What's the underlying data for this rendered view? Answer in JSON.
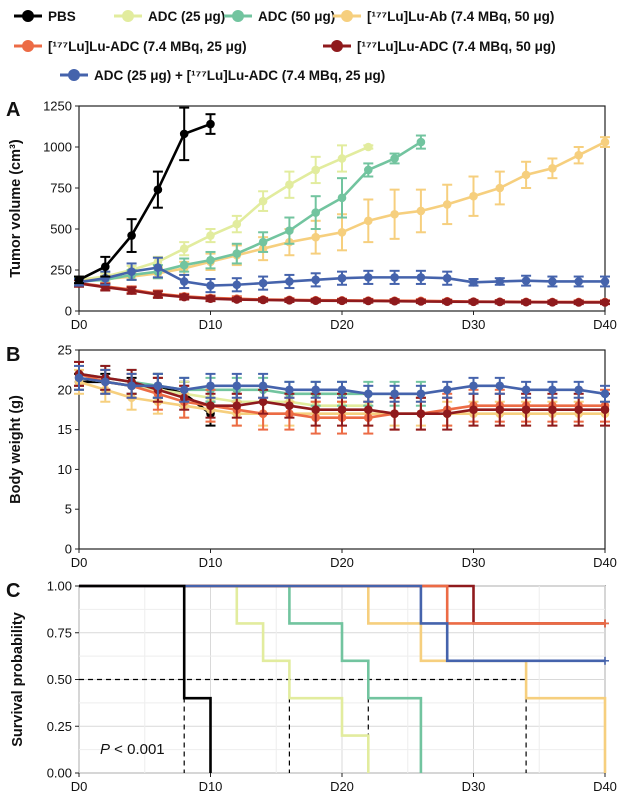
{
  "legend": {
    "items": [
      {
        "label": "PBS",
        "color": "#000000"
      },
      {
        "label": "ADC (25 μg)",
        "color": "#e2ec9e"
      },
      {
        "label": "ADC (50 μg)",
        "color": "#72c49f"
      },
      {
        "label": "[¹⁷⁷Lu]Lu-Ab (7.4 MBq, 50 μg)",
        "color": "#f6cf7e"
      },
      {
        "label": "[¹⁷⁷Lu]Lu-ADC (7.4 MBq, 25 μg)",
        "color": "#ec6b45"
      },
      {
        "label": "[¹⁷⁷Lu]Lu-ADC (7.4 MBq, 50 μg)",
        "color": "#8f1a1d"
      },
      {
        "label": "ADC (25 μg) + [¹⁷⁷Lu]Lu-ADC (7.4 MBq, 25 μg)",
        "color": "#4563ac"
      }
    ]
  },
  "chart_data": [
    {
      "panel": "A",
      "type": "line",
      "xlabel": "",
      "ylabel": "Tumor volume (cm³)",
      "xlim": [
        0,
        40
      ],
      "ylim": [
        0,
        1250
      ],
      "xticks": [
        0,
        10,
        20,
        30,
        40
      ],
      "xticklabels": [
        "D0",
        "D10",
        "D20",
        "D30",
        "D40"
      ],
      "yticks": [
        0,
        250,
        500,
        750,
        1000,
        1250
      ],
      "yticklabels": [
        "0",
        "250",
        "500",
        "750",
        "1000",
        "1250"
      ],
      "series": [
        {
          "name": "ADC (25 μg)",
          "color": "#e2ec9e",
          "x": [
            0,
            2,
            4,
            6,
            8,
            10,
            12,
            14,
            16,
            18,
            20,
            22
          ],
          "y": [
            190,
            210,
            250,
            300,
            380,
            460,
            530,
            670,
            770,
            860,
            930,
            1000
          ],
          "err": [
            20,
            20,
            25,
            30,
            40,
            40,
            50,
            60,
            80,
            80,
            80,
            10
          ]
        },
        {
          "name": "[¹⁷⁷Lu]Lu-Ab (7.4 MBq, 50 μg)",
          "color": "#f6cf7e",
          "x": [
            0,
            2,
            4,
            6,
            8,
            10,
            12,
            14,
            16,
            18,
            20,
            22,
            24,
            26,
            28,
            30,
            32,
            34,
            36,
            38,
            40
          ],
          "y": [
            185,
            195,
            210,
            230,
            260,
            300,
            340,
            380,
            420,
            450,
            480,
            550,
            590,
            610,
            650,
            700,
            750,
            830,
            870,
            950,
            1030
          ],
          "err": [
            20,
            20,
            20,
            30,
            40,
            50,
            60,
            70,
            80,
            100,
            110,
            130,
            150,
            130,
            120,
            120,
            100,
            80,
            60,
            50,
            30
          ]
        },
        {
          "name": "ADC (50 μg)",
          "color": "#72c49f",
          "x": [
            0,
            2,
            4,
            6,
            8,
            10,
            12,
            14,
            16,
            18,
            20,
            22,
            24,
            26
          ],
          "y": [
            180,
            190,
            220,
            240,
            280,
            310,
            350,
            420,
            490,
            600,
            690,
            860,
            930,
            1030
          ],
          "err": [
            20,
            20,
            30,
            40,
            40,
            50,
            60,
            60,
            80,
            100,
            120,
            40,
            30,
            40
          ]
        },
        {
          "name": "[¹⁷⁷Lu]Lu-ADC (7.4 MBq, 25 μg)",
          "color": "#ec6b45",
          "x": [
            0,
            2,
            4,
            6,
            8,
            10,
            12,
            14,
            16,
            18,
            20,
            22,
            24,
            26,
            28,
            30,
            32,
            34,
            36,
            38,
            40
          ],
          "y": [
            170,
            150,
            130,
            105,
            90,
            80,
            75,
            70,
            68,
            66,
            65,
            64,
            63,
            62,
            60,
            58,
            57,
            56,
            55,
            55,
            55
          ],
          "err": [
            20,
            20,
            20,
            20,
            15,
            15,
            15,
            10,
            10,
            10,
            10,
            10,
            10,
            10,
            10,
            10,
            10,
            10,
            10,
            10,
            10
          ]
        },
        {
          "name": "[¹⁷⁷Lu]Lu-ADC (7.4 MBq, 50 μg)",
          "color": "#8f1a1d",
          "x": [
            0,
            2,
            4,
            6,
            8,
            10,
            12,
            14,
            16,
            18,
            20,
            22,
            24,
            26,
            28,
            30,
            32,
            34,
            36,
            38,
            40
          ],
          "y": [
            168,
            145,
            125,
            100,
            85,
            75,
            70,
            67,
            65,
            63,
            62,
            61,
            60,
            58,
            57,
            56,
            55,
            54,
            53,
            52,
            52
          ],
          "err": [
            20,
            20,
            20,
            20,
            15,
            15,
            10,
            10,
            10,
            10,
            10,
            10,
            10,
            10,
            10,
            10,
            10,
            10,
            10,
            10,
            10
          ]
        },
        {
          "name": "ADC (25 μg) + [¹⁷⁷Lu]Lu-ADC (7.4 MBq, 25 μg)",
          "color": "#4563ac",
          "x": [
            0,
            2,
            4,
            6,
            8,
            10,
            12,
            14,
            16,
            18,
            20,
            22,
            24,
            26,
            28,
            30,
            32,
            34,
            36,
            38,
            40
          ],
          "y": [
            175,
            200,
            240,
            265,
            180,
            155,
            160,
            170,
            180,
            190,
            200,
            205,
            205,
            205,
            200,
            175,
            180,
            185,
            180,
            180,
            180
          ],
          "err": [
            20,
            40,
            50,
            60,
            40,
            40,
            40,
            40,
            40,
            40,
            40,
            40,
            40,
            40,
            40,
            20,
            20,
            30,
            30,
            30,
            30
          ]
        },
        {
          "name": "PBS",
          "color": "#000000",
          "x": [
            0,
            2,
            4,
            6,
            8,
            10
          ],
          "y": [
            190,
            270,
            460,
            740,
            1080,
            1140
          ],
          "err": [
            20,
            60,
            100,
            110,
            160,
            60
          ]
        }
      ]
    },
    {
      "panel": "B",
      "type": "line",
      "xlabel": "",
      "ylabel": "Body weight (g)",
      "xlim": [
        0,
        40
      ],
      "ylim": [
        0,
        25
      ],
      "xticks": [
        0,
        10,
        20,
        30,
        40
      ],
      "xticklabels": [
        "D0",
        "D10",
        "D20",
        "D30",
        "D40"
      ],
      "yticks": [
        0,
        5,
        10,
        15,
        20,
        25
      ],
      "yticklabels": [
        "0",
        "5",
        "10",
        "15",
        "20",
        "25"
      ],
      "series": [
        {
          "name": "PBS",
          "color": "#000000",
          "x": [
            0,
            2,
            4,
            6,
            8,
            10
          ],
          "y": [
            21,
            21,
            20.5,
            20.5,
            19.5,
            17
          ],
          "err": [
            1,
            1,
            1,
            1.5,
            1.5,
            1.5
          ]
        },
        {
          "name": "ADC (25 μg)",
          "color": "#e2ec9e",
          "x": [
            0,
            2,
            4,
            6,
            8,
            10,
            12,
            14,
            16,
            18,
            20,
            22
          ],
          "y": [
            21.5,
            21,
            20.5,
            20,
            19.5,
            19,
            18.5,
            18.5,
            18.5,
            18,
            18,
            18
          ],
          "err": [
            1.5,
            1.5,
            1.5,
            1.5,
            1.5,
            1.5,
            1.5,
            1.5,
            1.5,
            1.5,
            1.5,
            1.5
          ]
        },
        {
          "name": "ADC (50 μg)",
          "color": "#72c49f",
          "x": [
            0,
            2,
            4,
            6,
            8,
            10,
            12,
            14,
            16,
            18,
            20,
            22,
            24,
            26
          ],
          "y": [
            22,
            21.5,
            21,
            20.5,
            20,
            20,
            20,
            20,
            19.5,
            19.5,
            19.5,
            19.5,
            19.5,
            19.5
          ],
          "err": [
            1.5,
            1.5,
            1.5,
            1.5,
            1.5,
            1.5,
            1.5,
            1.5,
            1.5,
            1.5,
            1.5,
            1.5,
            1.5,
            1.5
          ]
        },
        {
          "name": "[¹⁷⁷Lu]Lu-Ab (7.4 MBq, 50 μg)",
          "color": "#f6cf7e",
          "x": [
            0,
            2,
            4,
            6,
            8,
            10,
            12,
            14,
            16,
            18,
            20,
            22,
            24,
            26,
            28,
            30,
            32,
            34,
            36,
            38,
            40
          ],
          "y": [
            21,
            20,
            19,
            18.5,
            18,
            17.5,
            17,
            17,
            17,
            17,
            17,
            17,
            17,
            17,
            17,
            17,
            17,
            17,
            17,
            17,
            17
          ],
          "err": [
            1.5,
            1.5,
            1.5,
            1.5,
            1.5,
            1.5,
            1.5,
            1.5,
            1.5,
            1.5,
            1.5,
            1.5,
            1.5,
            1.5,
            1.5,
            1.5,
            1.5,
            1.5,
            1.5,
            1.5,
            1.5
          ]
        },
        {
          "name": "[¹⁷⁷Lu]Lu-ADC (7.4 MBq, 25 μg)",
          "color": "#ec6b45",
          "x": [
            0,
            2,
            4,
            6,
            8,
            10,
            12,
            14,
            16,
            18,
            20,
            22,
            24,
            26,
            28,
            30,
            32,
            34,
            36,
            38,
            40
          ],
          "y": [
            22,
            21,
            20.5,
            19.5,
            18.5,
            18,
            17.5,
            17,
            17,
            16.5,
            16.5,
            16.5,
            17,
            17,
            17.5,
            18,
            18,
            18,
            18,
            18,
            18
          ],
          "err": [
            1.5,
            1.5,
            1.5,
            2,
            2,
            2,
            2,
            2,
            2,
            2,
            2,
            2,
            2,
            2,
            2,
            2,
            2,
            2,
            2,
            2,
            2
          ]
        },
        {
          "name": "[¹⁷⁷Lu]Lu-ADC (7.4 MBq, 50 μg)",
          "color": "#8f1a1d",
          "x": [
            0,
            2,
            4,
            6,
            8,
            10,
            12,
            14,
            16,
            18,
            20,
            22,
            24,
            26,
            28,
            30,
            32,
            34,
            36,
            38,
            40
          ],
          "y": [
            22,
            21.5,
            21,
            20,
            19,
            18,
            18,
            18.5,
            18,
            17.5,
            17.5,
            17.5,
            17,
            17,
            17,
            17.5,
            17.5,
            17.5,
            17.5,
            17.5,
            17.5
          ],
          "err": [
            1.5,
            1.5,
            1.5,
            1.5,
            1.5,
            1.5,
            1.5,
            1.5,
            1.5,
            2,
            2,
            2,
            2,
            2,
            2,
            2,
            2,
            2,
            2,
            2,
            2
          ]
        },
        {
          "name": "ADC (25 μg) + [¹⁷⁷Lu]Lu-ADC (7.4 MBq, 25 μg)",
          "color": "#4563ac",
          "x": [
            0,
            2,
            4,
            6,
            8,
            10,
            12,
            14,
            16,
            18,
            20,
            22,
            24,
            26,
            28,
            30,
            32,
            34,
            36,
            38,
            40
          ],
          "y": [
            21.5,
            21,
            20.5,
            20.5,
            20,
            20.5,
            20.5,
            20.5,
            20,
            20,
            20,
            19.5,
            19.5,
            19.5,
            20,
            20.5,
            20.5,
            20,
            20,
            20,
            19.5
          ],
          "err": [
            1.5,
            1.5,
            1.5,
            1.5,
            1.5,
            1.5,
            1.5,
            1.5,
            1,
            1,
            1,
            1,
            1,
            1,
            1,
            1,
            1,
            1,
            1,
            1,
            1
          ]
        }
      ]
    },
    {
      "panel": "C",
      "type": "line",
      "xlabel": "",
      "ylabel": "Survival probability",
      "xlim": [
        0,
        40
      ],
      "ylim": [
        0,
        1
      ],
      "xticks": [
        0,
        10,
        20,
        30,
        40
      ],
      "xticklabels": [
        "D0",
        "D10",
        "D20",
        "D30",
        "D40"
      ],
      "yticks": [
        0,
        0.25,
        0.5,
        0.75,
        1
      ],
      "yticklabels": [
        "0.00",
        "0.25",
        "0.50",
        "0.75",
        "1.00"
      ],
      "annotation": "P < 0.001",
      "median_line": 0.5,
      "median_drops": [
        8,
        16,
        22,
        34
      ],
      "series": [
        {
          "name": "ADC (25 μg)",
          "color": "#e2ec9e",
          "steps": [
            [
              0,
              1
            ],
            [
              12,
              0.8
            ],
            [
              14,
              0.6
            ],
            [
              16,
              0.4
            ],
            [
              20,
              0.2
            ],
            [
              22,
              0
            ]
          ]
        },
        {
          "name": "ADC (50 μg)",
          "color": "#72c49f",
          "steps": [
            [
              0,
              1
            ],
            [
              16,
              0.8
            ],
            [
              20,
              0.6
            ],
            [
              22,
              0.4
            ],
            [
              26,
              0
            ]
          ]
        },
        {
          "name": "[¹⁷⁷Lu]Lu-Ab (7.4 MBq, 50 μg)",
          "color": "#f6cf7e",
          "steps": [
            [
              0,
              1
            ],
            [
              22,
              0.8
            ],
            [
              26,
              0.6
            ],
            [
              34,
              0.4
            ],
            [
              40,
              0
            ]
          ]
        },
        {
          "name": "[¹⁷⁷Lu]Lu-ADC (7.4 MBq, 50 μg)",
          "color": "#8f1a1d",
          "steps": [
            [
              0,
              1
            ],
            [
              30,
              0.8
            ],
            [
              40,
              0.8
            ]
          ],
          "censored_at": 40
        },
        {
          "name": "[¹⁷⁷Lu]Lu-ADC (7.4 MBq, 25 μg)",
          "color": "#ec6b45",
          "steps": [
            [
              0,
              1
            ],
            [
              28,
              0.8
            ],
            [
              40,
              0.8
            ]
          ],
          "censored_at": 40
        },
        {
          "name": "ADC (25 μg) + [¹⁷⁷Lu]Lu-ADC (7.4 MBq, 25 μg)",
          "color": "#4563ac",
          "steps": [
            [
              0,
              1
            ],
            [
              26,
              0.8
            ],
            [
              28,
              0.6
            ],
            [
              40,
              0.6
            ]
          ],
          "censored_at": 40
        },
        {
          "name": "PBS",
          "color": "#000000",
          "steps": [
            [
              0,
              1
            ],
            [
              8,
              0.4
            ],
            [
              10,
              0
            ]
          ]
        }
      ]
    }
  ]
}
